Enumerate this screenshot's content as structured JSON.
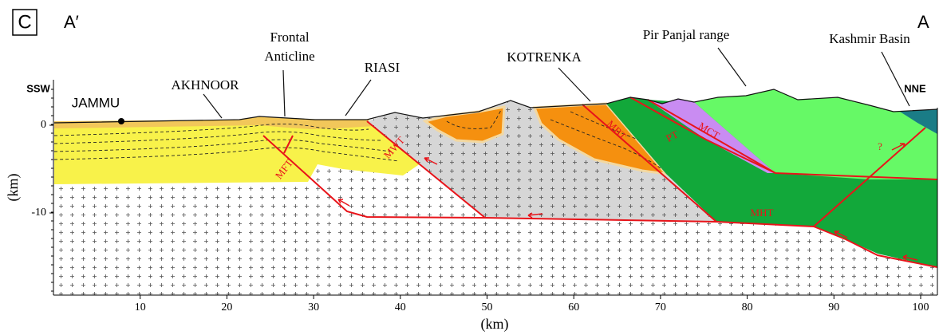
{
  "panel_label": "C",
  "section_ends": {
    "left": "A′",
    "right": "A"
  },
  "directions": {
    "left": "SSW",
    "right": "NNE"
  },
  "places": {
    "jammu": "JAMMU",
    "akhnoor": "AKHNOOR",
    "frontal_anticline": [
      "Frontal",
      "Anticline"
    ],
    "riasi": "RIASI",
    "kotrenka": "KOTRENKA",
    "pir_panjal": "Pir Panjal range",
    "kashmir_basin": "Kashmir Basin"
  },
  "faults": {
    "mft": "MFT",
    "mwt": "MWT",
    "mbt": "MBT",
    "pt": "PT",
    "mct": "MCT",
    "mht": "MHT",
    "unknown": "?"
  },
  "axes": {
    "x": {
      "label": "(km)",
      "ticks": [
        10,
        20,
        30,
        40,
        50,
        60,
        70,
        80,
        90,
        100
      ]
    },
    "y": {
      "label": "(km)",
      "ticks": [
        0,
        -10
      ]
    }
  }
}
